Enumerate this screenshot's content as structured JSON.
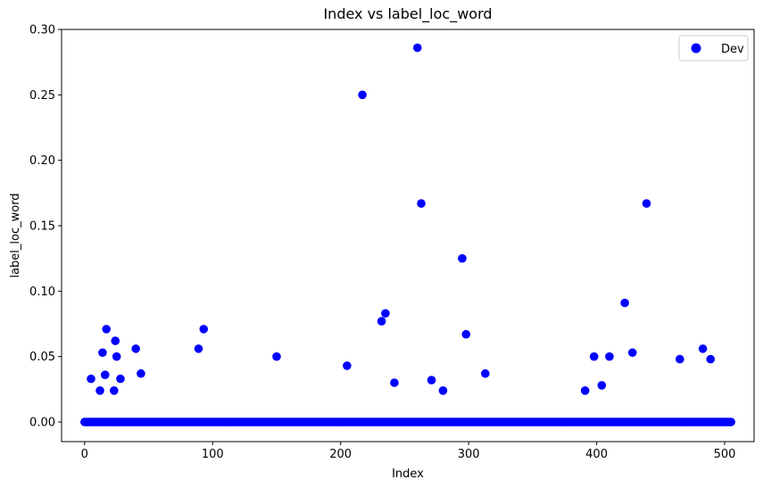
{
  "chart_data": {
    "type": "scatter",
    "title": "Index vs label_loc_word",
    "xlabel": "Index",
    "ylabel": "label_loc_word",
    "xlim": [
      -18,
      523
    ],
    "ylim": [
      -0.015,
      0.3
    ],
    "xticks": [
      0,
      100,
      200,
      300,
      400,
      500
    ],
    "yticks": [
      0.0,
      0.05,
      0.1,
      0.15,
      0.2,
      0.25,
      0.3
    ],
    "xtick_labels": [
      "0",
      "100",
      "200",
      "300",
      "400",
      "500"
    ],
    "ytick_labels": [
      "0.00",
      "0.05",
      "0.10",
      "0.15",
      "0.20",
      "0.25",
      "0.30"
    ],
    "grid": false,
    "legend_position": "top-right",
    "series": [
      {
        "name": "Dev",
        "color": "#0000ff",
        "zero_range": [
          0,
          505
        ],
        "points": [
          {
            "x": 5,
            "y": 0.033
          },
          {
            "x": 12,
            "y": 0.024
          },
          {
            "x": 14,
            "y": 0.053
          },
          {
            "x": 16,
            "y": 0.036
          },
          {
            "x": 17,
            "y": 0.071
          },
          {
            "x": 23,
            "y": 0.024
          },
          {
            "x": 24,
            "y": 0.062
          },
          {
            "x": 25,
            "y": 0.05
          },
          {
            "x": 28,
            "y": 0.033
          },
          {
            "x": 40,
            "y": 0.056
          },
          {
            "x": 44,
            "y": 0.037
          },
          {
            "x": 89,
            "y": 0.056
          },
          {
            "x": 93,
            "y": 0.071
          },
          {
            "x": 150,
            "y": 0.05
          },
          {
            "x": 205,
            "y": 0.043
          },
          {
            "x": 217,
            "y": 0.25
          },
          {
            "x": 232,
            "y": 0.077
          },
          {
            "x": 235,
            "y": 0.083
          },
          {
            "x": 242,
            "y": 0.03
          },
          {
            "x": 260,
            "y": 0.286
          },
          {
            "x": 263,
            "y": 0.167
          },
          {
            "x": 271,
            "y": 0.032
          },
          {
            "x": 280,
            "y": 0.024
          },
          {
            "x": 295,
            "y": 0.125
          },
          {
            "x": 298,
            "y": 0.067
          },
          {
            "x": 313,
            "y": 0.037
          },
          {
            "x": 391,
            "y": 0.024
          },
          {
            "x": 398,
            "y": 0.05
          },
          {
            "x": 404,
            "y": 0.028
          },
          {
            "x": 410,
            "y": 0.05
          },
          {
            "x": 422,
            "y": 0.091
          },
          {
            "x": 428,
            "y": 0.053
          },
          {
            "x": 439,
            "y": 0.167
          },
          {
            "x": 465,
            "y": 0.048
          },
          {
            "x": 483,
            "y": 0.056
          },
          {
            "x": 489,
            "y": 0.048
          }
        ]
      }
    ]
  }
}
